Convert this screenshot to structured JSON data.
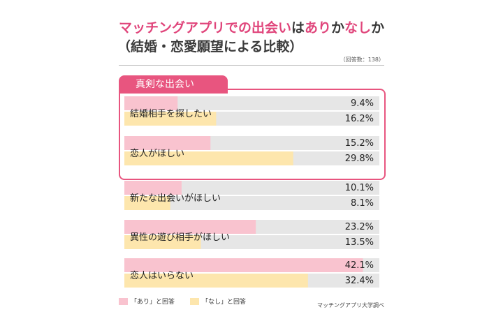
{
  "title": {
    "line1_parts": [
      {
        "text": "マッチングアプリでの出会い",
        "dark": false
      },
      {
        "text": "は",
        "dark": true
      },
      {
        "text": "あり",
        "dark": false
      },
      {
        "text": "か",
        "dark": true
      },
      {
        "text": "なし",
        "dark": false
      },
      {
        "text": "か",
        "dark": true
      }
    ],
    "line2": "（結婚・恋愛願望による比較）"
  },
  "note": "（回答数：138）",
  "group_label": "真剣な出会い",
  "legend": {
    "ari": "「あり」と回答",
    "nashi": "「なし」と回答"
  },
  "source": "マッチングアプリ大学調べ",
  "colors": {
    "ari": "#f9c3cf",
    "nashi": "#fde6ad",
    "track": "#e6e6e6",
    "accent": "#e8557f"
  },
  "chart_data": {
    "type": "bar",
    "orientation": "horizontal",
    "xlim": [
      0,
      45
    ],
    "categories": [
      "結婚相手を探したい",
      "恋人がほしい",
      "新たな出会いがほしい",
      "異性の遊び相手がほしい",
      "恋人はいらない"
    ],
    "series": [
      {
        "name": "「あり」と回答",
        "values": [
          9.4,
          15.2,
          10.1,
          23.2,
          42.1
        ],
        "labels": [
          "9.4%",
          "15.2%",
          "10.1%",
          "23.2%",
          "42.1%"
        ]
      },
      {
        "name": "「なし」と回答",
        "values": [
          16.2,
          29.8,
          8.1,
          13.5,
          32.4
        ],
        "labels": [
          "16.2%",
          "29.8%",
          "8.1%",
          "13.5%",
          "32.4%"
        ]
      }
    ],
    "grid": false,
    "legend": "bottom-left"
  }
}
